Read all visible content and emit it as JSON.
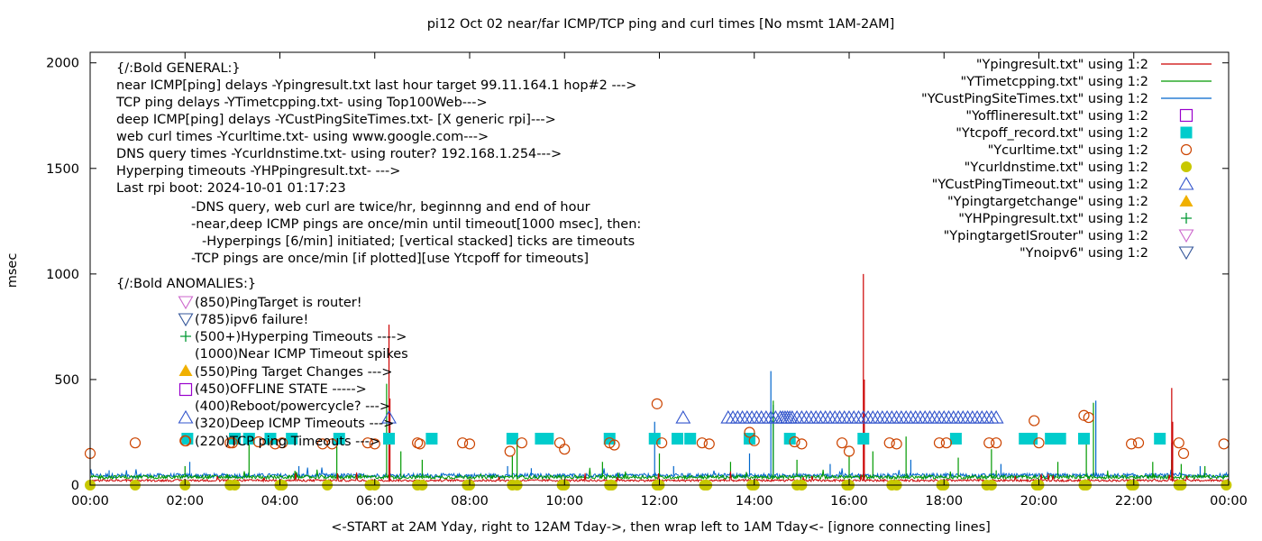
{
  "chart_data": {
    "type": "line",
    "title": "pi12 Oct 02  near/far ICMP/TCP ping and curl times [No msmt 1AM-2AM]",
    "xlabel": "<-START at 2AM Yday, right to 12AM Tday->, then wrap left to 1AM Tday<- [ignore connecting lines]",
    "ylabel": "msec",
    "xlim": [
      0,
      24
    ],
    "ylim": [
      0,
      2050
    ],
    "grid": false,
    "legend_position": "top-right",
    "x_ticks": [
      "00:00",
      "02:00",
      "04:00",
      "06:00",
      "08:00",
      "10:00",
      "12:00",
      "14:00",
      "16:00",
      "18:00",
      "20:00",
      "22:00",
      "00:00"
    ],
    "y_ticks": [
      "0",
      "500",
      "1000",
      "1500",
      "2000"
    ],
    "annotations": [
      "{/:Bold GENERAL:}",
      "near ICMP[ping] delays -Ypingresult.txt last hour target 99.11.164.1 hop#2 --->",
      "TCP ping delays -YTimetcpping.txt- using Top100Web--->",
      "deep ICMP[ping] delays -YCustPingSiteTimes.txt- [X generic rpi]--->",
      "web curl times -Ycurltime.txt- using www.google.com--->",
      "DNS query times -Ycurldnstime.txt- using router? 192.168.1.254--->",
      "Hyperping timeouts -YHPpingresult.txt- --->",
      "Last rpi boot: 2024-10-01 01:17:23",
      "-DNS query, web curl are twice/hr, beginnng and end of hour",
      "-near,deep ICMP pings are once/min until timeout[1000 msec], then:",
      "-Hyperpings [6/min] initiated; [vertical stacked] ticks are timeouts",
      "-TCP pings are once/min [if plotted][use Ytcpoff for timeouts]",
      "{/:Bold ANOMALIES:}",
      "(850)PingTarget is router!",
      "(785)ipv6 failure!",
      "(500+)Hyperping Timeouts ---->",
      "(1000)Near ICMP Timeout spikes",
      "(550)Ping Target Changes --->",
      "(450)OFFLINE STATE ----->",
      "(400)Reboot/powercycle? --->",
      "(320)Deep ICMP Timeouts --->",
      "(220)TCP ping Timeouts --->"
    ],
    "series": [
      {
        "name": "\"Ypingresult.txt\" using 1:2",
        "color": "#cc0000",
        "marker": "line",
        "baseline": 22,
        "spikes": [
          [
            6.3,
            760
          ],
          [
            6.32,
            410
          ],
          [
            16.3,
            1000
          ],
          [
            16.32,
            500
          ],
          [
            22.8,
            460
          ],
          [
            22.82,
            300
          ]
        ]
      },
      {
        "name": "\"YTimetcpping.txt\" using 1:2",
        "color": "#009900",
        "marker": "line",
        "baseline": 38,
        "spikes": [
          [
            2.0,
            90
          ],
          [
            3.35,
            210
          ],
          [
            5.2,
            220
          ],
          [
            6.25,
            480
          ],
          [
            6.55,
            160
          ],
          [
            7.0,
            120
          ],
          [
            8.9,
            140
          ],
          [
            9.0,
            200
          ],
          [
            10.8,
            110
          ],
          [
            12.0,
            150
          ],
          [
            13.5,
            110
          ],
          [
            14.4,
            400
          ],
          [
            14.9,
            120
          ],
          [
            16.0,
            140
          ],
          [
            16.5,
            160
          ],
          [
            17.2,
            230
          ],
          [
            18.3,
            130
          ],
          [
            19.0,
            170
          ],
          [
            19.1,
            70
          ],
          [
            20.4,
            110
          ],
          [
            21.0,
            240
          ],
          [
            21.15,
            390
          ],
          [
            22.4,
            110
          ],
          [
            22.8,
            120
          ],
          [
            23.0,
            100
          ],
          [
            23.5,
            90
          ]
        ]
      },
      {
        "name": "\"YCustPingSiteTimes.txt\" using 1:2",
        "color": "#0066cc",
        "marker": "line",
        "baseline": 45,
        "spikes": [
          [
            0.4,
            70
          ],
          [
            2.1,
            110
          ],
          [
            4.4,
            90
          ],
          [
            6.3,
            120
          ],
          [
            8.8,
            90
          ],
          [
            9.3,
            80
          ],
          [
            11.9,
            300
          ],
          [
            12.3,
            90
          ],
          [
            13.9,
            150
          ],
          [
            14.35,
            540
          ],
          [
            14.4,
            380
          ],
          [
            15.6,
            100
          ],
          [
            17.3,
            120
          ],
          [
            19.2,
            100
          ],
          [
            21.2,
            400
          ],
          [
            22.8,
            200
          ],
          [
            23.4,
            90
          ]
        ]
      },
      {
        "name": "\"Yofflineresult.txt\" using 1:2",
        "color": "#9900cc",
        "marker": "open-square",
        "points": []
      },
      {
        "name": "\"Ytcpoff_record.txt\" using 1:2",
        "color": "#00cccc",
        "marker": "filled-square",
        "y": 220,
        "x": [
          2.05,
          3.05,
          3.35,
          3.8,
          4.25,
          5.25,
          6.3,
          7.2,
          8.9,
          9.5,
          9.65,
          10.95,
          11.9,
          12.38,
          12.65,
          13.9,
          14.75,
          16.3,
          18.25,
          19.7,
          19.85,
          20.25,
          20.45,
          20.95,
          22.55
        ]
      },
      {
        "name": "\"Ycurltime.txt\" using 1:2",
        "color": "#cc4400",
        "marker": "open-circle",
        "points": [
          [
            0.0,
            150
          ],
          [
            0.95,
            200
          ],
          [
            2.0,
            210
          ],
          [
            2.95,
            200
          ],
          [
            3.0,
            200
          ],
          [
            3.55,
            205
          ],
          [
            3.9,
            195
          ],
          [
            4.05,
            200
          ],
          [
            4.9,
            195
          ],
          [
            5.1,
            195
          ],
          [
            5.85,
            200
          ],
          [
            6.0,
            195
          ],
          [
            6.9,
            200
          ],
          [
            6.95,
            195
          ],
          [
            7.85,
            200
          ],
          [
            8.0,
            195
          ],
          [
            8.85,
            160
          ],
          [
            9.1,
            200
          ],
          [
            9.9,
            200
          ],
          [
            10.0,
            170
          ],
          [
            10.95,
            200
          ],
          [
            11.05,
            190
          ],
          [
            11.95,
            385
          ],
          [
            12.05,
            200
          ],
          [
            12.9,
            200
          ],
          [
            13.05,
            195
          ],
          [
            13.9,
            250
          ],
          [
            14.0,
            210
          ],
          [
            14.85,
            205
          ],
          [
            15.0,
            195
          ],
          [
            15.85,
            200
          ],
          [
            16.0,
            160
          ],
          [
            16.85,
            200
          ],
          [
            17.0,
            195
          ],
          [
            17.9,
            200
          ],
          [
            18.05,
            200
          ],
          [
            18.95,
            200
          ],
          [
            19.1,
            200
          ],
          [
            19.9,
            305
          ],
          [
            20.0,
            200
          ],
          [
            20.95,
            330
          ],
          [
            21.05,
            320
          ],
          [
            21.95,
            195
          ],
          [
            22.1,
            200
          ],
          [
            22.95,
            200
          ],
          [
            23.05,
            150
          ],
          [
            23.9,
            195
          ]
        ]
      },
      {
        "name": "\"Ycurldnstime.txt\" using 1:2",
        "color": "#c8c800",
        "marker": "filled-circle",
        "y": 0,
        "x": [
          0.0,
          0.95,
          2.0,
          2.95,
          3.05,
          4.0,
          4.05,
          5.0,
          5.9,
          6.0,
          6.9,
          7.0,
          7.95,
          8.0,
          8.9,
          9.0,
          9.95,
          10.0,
          10.95,
          11.0,
          11.95,
          12.0,
          12.95,
          13.0,
          13.95,
          14.0,
          14.9,
          15.0,
          15.95,
          16.0,
          16.9,
          17.0,
          17.95,
          18.0,
          18.9,
          19.0,
          19.95,
          20.0,
          20.95,
          21.0,
          21.95,
          22.0,
          22.95,
          23.0,
          23.95
        ]
      },
      {
        "name": "\"YCustPingTimeout.txt\" using 1:2",
        "color": "#3355cc",
        "marker": "open-triangle-up",
        "y": 320,
        "x": [
          6.3,
          12.5,
          13.45,
          13.55,
          13.65,
          13.75,
          13.85,
          13.95,
          14.05,
          14.15,
          14.25,
          14.35,
          14.45,
          14.55,
          14.6,
          14.65,
          14.7,
          14.75,
          14.8,
          14.9,
          15.0,
          15.1,
          15.2,
          15.3,
          15.4,
          15.5,
          15.6,
          15.7,
          15.8,
          15.9,
          16.0,
          16.1,
          16.2,
          16.3,
          16.4,
          16.5,
          16.6,
          16.7,
          16.8,
          16.9,
          17.0,
          17.1,
          17.2,
          17.3,
          17.4,
          17.5,
          17.6,
          17.7,
          17.8,
          17.9,
          18.0,
          18.1,
          18.2,
          18.3,
          18.4,
          18.5,
          18.6,
          18.7,
          18.8,
          18.9,
          19.0,
          19.1
        ]
      },
      {
        "name": "\"Ypingtargetchange\" using 1:2",
        "color": "#f0b000",
        "marker": "filled-triangle-up",
        "points": []
      },
      {
        "name": "\"YHPpingresult.txt\" using 1:2",
        "color": "#009933",
        "marker": "plus",
        "points": []
      },
      {
        "name": "\"YpingtargetISrouter\" using 1:2",
        "color": "#cc66cc",
        "marker": "open-triangle-down",
        "points": []
      },
      {
        "name": "\"Ynoipv6\" using 1:2",
        "color": "#335599",
        "marker": "open-triangle-down",
        "points": []
      }
    ]
  }
}
